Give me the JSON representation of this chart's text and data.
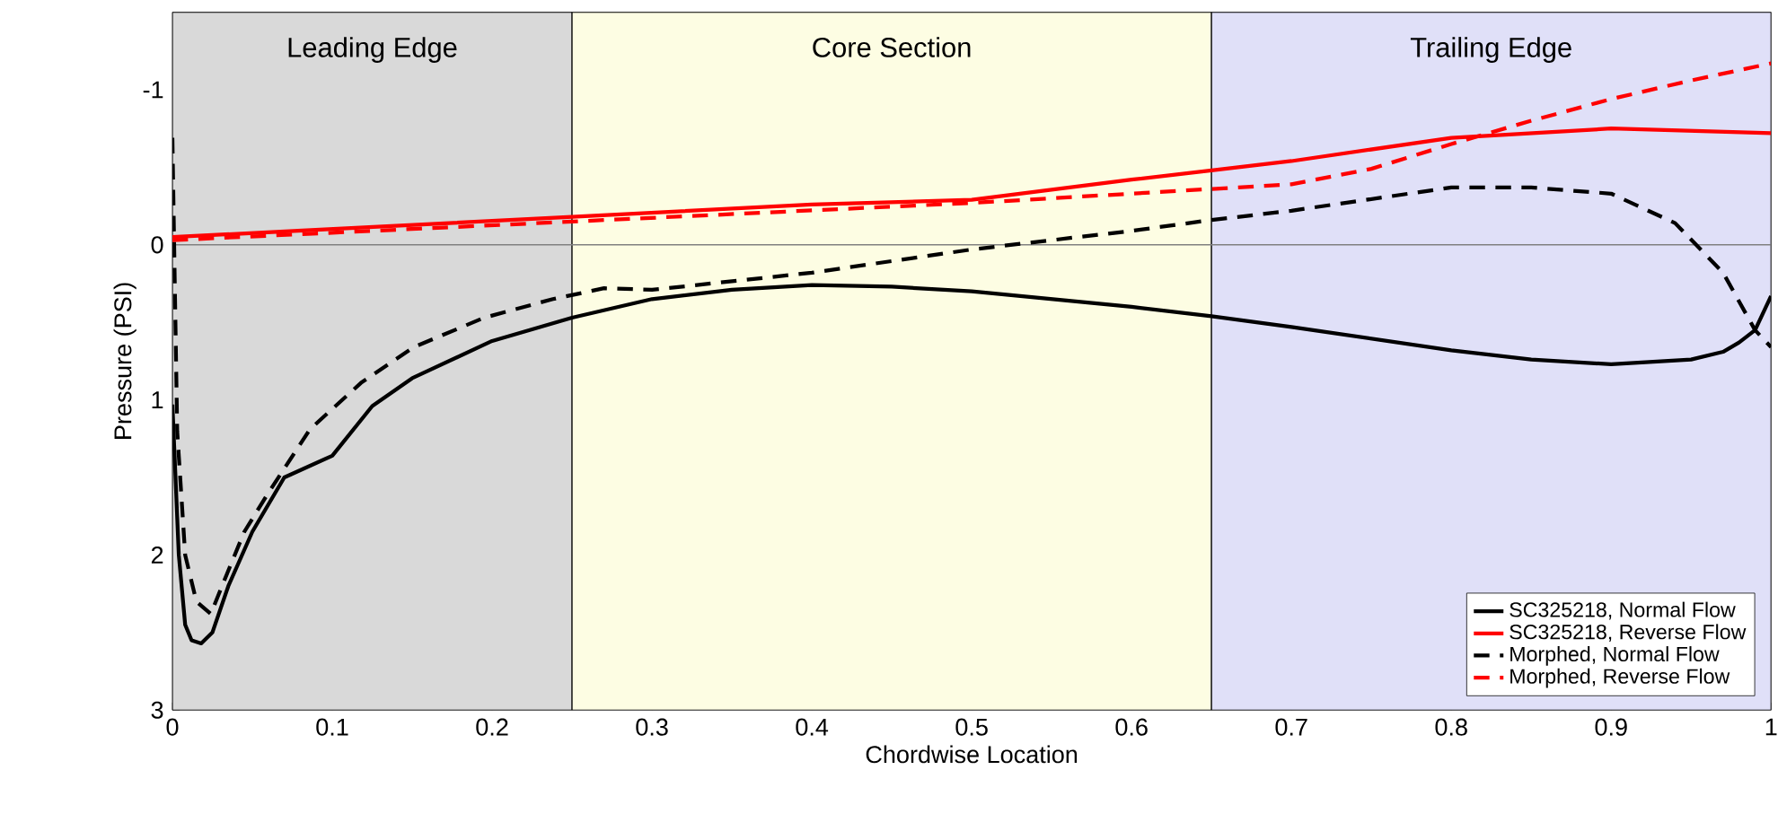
{
  "chart_data": {
    "type": "line",
    "xlabel": "Chordwise Location",
    "ylabel": "Pressure (PSI)",
    "xlim": [
      0,
      1
    ],
    "ylim": [
      3,
      -1.5
    ],
    "xticks": [
      0,
      0.1,
      0.2,
      0.3,
      0.4,
      0.5,
      0.6,
      0.7,
      0.8,
      0.9,
      1
    ],
    "yticks": [
      -1,
      0,
      1,
      2,
      3
    ],
    "grid": true,
    "legend": "bottom right",
    "series": [
      {
        "name": "SC325218, Normal Flow",
        "color": "#000000",
        "line_style": "solid",
        "x": [
          0,
          0.004,
          0.008,
          0.012,
          0.018,
          0.025,
          0.035,
          0.05,
          0.07,
          0.1,
          0.125,
          0.15,
          0.2,
          0.25,
          0.3,
          0.35,
          0.4,
          0.45,
          0.5,
          0.6,
          0.65,
          0.7,
          0.8,
          0.85,
          0.9,
          0.95,
          0.97,
          0.98,
          0.99,
          1
        ],
        "values": [
          1.03,
          2.0,
          2.45,
          2.55,
          2.57,
          2.5,
          2.2,
          1.85,
          1.5,
          1.36,
          1.04,
          0.86,
          0.62,
          0.47,
          0.35,
          0.29,
          0.26,
          0.27,
          0.3,
          0.4,
          0.46,
          0.53,
          0.68,
          0.74,
          0.77,
          0.74,
          0.69,
          0.63,
          0.55,
          0.33
        ]
      },
      {
        "name": "SC325218, Reverse Flow",
        "color": "#ff0000",
        "line_style": "solid",
        "x": [
          0,
          0.25,
          0.4,
          0.5,
          0.6,
          0.65,
          0.7,
          0.8,
          0.9,
          1
        ],
        "values": [
          -0.05,
          -0.18,
          -0.26,
          -0.29,
          -0.42,
          -0.48,
          -0.54,
          -0.69,
          -0.75,
          -0.72
        ]
      },
      {
        "name": "Morphed, Normal Flow",
        "color": "#000000",
        "line_style": "dashed",
        "x": [
          0,
          0.003,
          0.008,
          0.015,
          0.024,
          0.035,
          0.045,
          0.06,
          0.086,
          0.118,
          0.151,
          0.195,
          0.238,
          0.27,
          0.3,
          0.4,
          0.5,
          0.6,
          0.65,
          0.7,
          0.8,
          0.85,
          0.9,
          0.94,
          0.97,
          0.99,
          1
        ],
        "values": [
          -0.69,
          1.2,
          2.0,
          2.3,
          2.38,
          2.1,
          1.85,
          1.6,
          1.19,
          0.89,
          0.66,
          0.47,
          0.35,
          0.28,
          0.29,
          0.18,
          0.03,
          -0.09,
          -0.16,
          -0.22,
          -0.37,
          -0.37,
          -0.33,
          -0.14,
          0.18,
          0.55,
          0.66
        ]
      },
      {
        "name": "Morphed, Reverse Flow",
        "color": "#ff0000",
        "line_style": "dashed",
        "x": [
          0,
          0.25,
          0.5,
          0.6,
          0.65,
          0.7,
          0.75,
          0.8,
          0.85,
          0.9,
          0.95,
          1
        ],
        "values": [
          -0.03,
          -0.15,
          -0.27,
          -0.33,
          -0.36,
          -0.39,
          -0.49,
          -0.65,
          -0.8,
          -0.94,
          -1.06,
          -1.17
        ]
      }
    ],
    "ref_lines": [
      {
        "axis": "y",
        "value": 0,
        "color": "#808080"
      }
    ],
    "bands": [
      {
        "axis": "x",
        "from": 0,
        "to": 0.25,
        "label": "Leading Edge",
        "color": "#d9d9d9"
      },
      {
        "axis": "x",
        "from": 0.25,
        "to": 0.65,
        "label": "Core Section",
        "color": "#fdfde3"
      },
      {
        "axis": "x",
        "from": 0.65,
        "to": 1,
        "label": "Trailing Edge",
        "color": "#e0e0f8"
      }
    ]
  }
}
